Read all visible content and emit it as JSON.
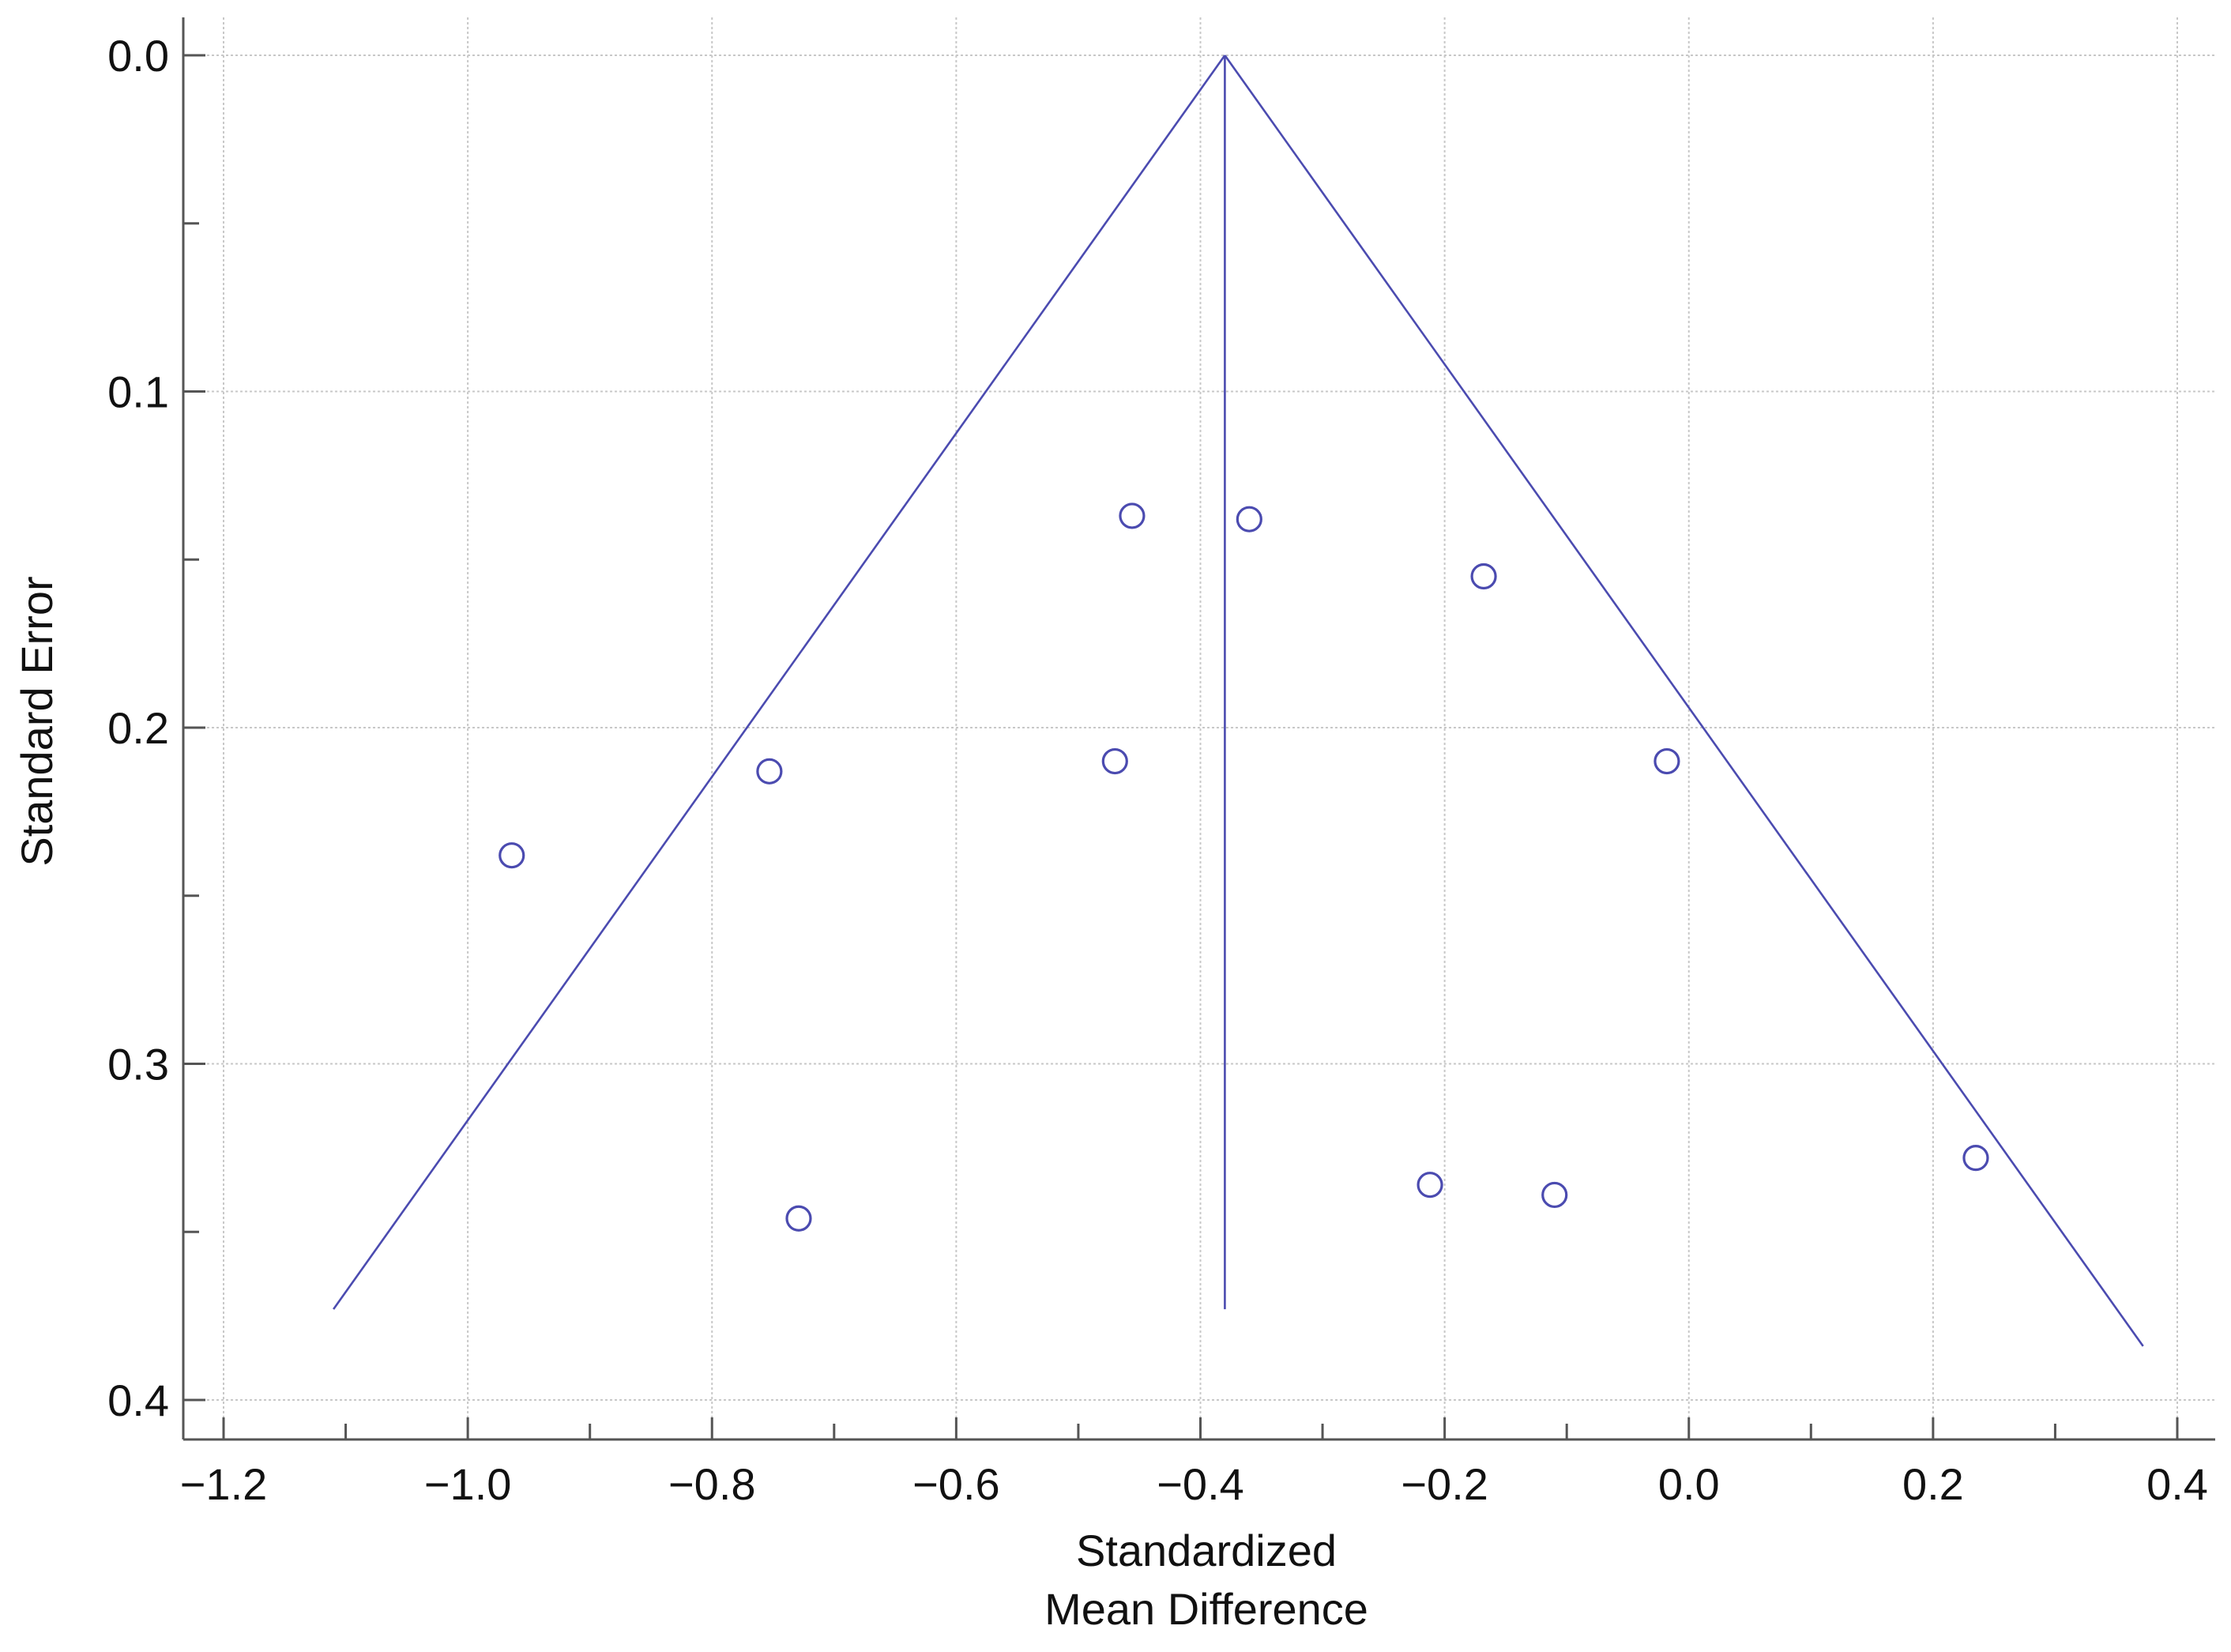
{
  "chart_data": {
    "type": "scatter",
    "subtype": "funnel plot",
    "title": "",
    "xlabel_lines": [
      "Standardized",
      "Mean Difference"
    ],
    "ylabel": "Standard Error",
    "xlim": [
      -1.25,
      0.42
    ],
    "ylim": [
      0.412,
      -0.012
    ],
    "y_axis_inverted": true,
    "x_ticks": [
      -1.2,
      -1.0,
      -0.8,
      -0.6,
      -0.4,
      -0.2,
      0.0,
      0.2,
      0.4
    ],
    "x_tick_labels": [
      "−1.2",
      "−1.0",
      "−0.8",
      "−0.6",
      "−0.4",
      "−0.2",
      "0.0",
      "0.2",
      "0.4"
    ],
    "x_minor_ticks": [
      -1.1,
      -0.9,
      -0.7,
      -0.5,
      -0.3,
      -0.1,
      0.1,
      0.3
    ],
    "y_ticks": [
      0.0,
      0.1,
      0.2,
      0.3,
      0.4
    ],
    "y_tick_labels": [
      "0.0",
      "0.1",
      "0.2",
      "0.3",
      "0.4"
    ],
    "y_minor_ticks": [
      0.05,
      0.15,
      0.25,
      0.35
    ],
    "grid": true,
    "pooled_effect": -0.38,
    "funnel": {
      "apex": {
        "x": -0.38,
        "y": 0.0
      },
      "left_end": {
        "x": -1.11,
        "y": 0.373
      },
      "right_end": {
        "x": 0.372,
        "y": 0.384
      },
      "center_line_end_y": 0.373
    },
    "points": [
      {
        "x": -0.456,
        "y": 0.137
      },
      {
        "x": -0.36,
        "y": 0.138
      },
      {
        "x": -0.168,
        "y": 0.155
      },
      {
        "x": -0.753,
        "y": 0.213
      },
      {
        "x": -0.47,
        "y": 0.21
      },
      {
        "x": -0.018,
        "y": 0.21
      },
      {
        "x": -0.964,
        "y": 0.238
      },
      {
        "x": -0.729,
        "y": 0.346
      },
      {
        "x": -0.212,
        "y": 0.336
      },
      {
        "x": -0.11,
        "y": 0.339
      },
      {
        "x": 0.235,
        "y": 0.328
      }
    ],
    "colors": {
      "series": "#4b4bb0",
      "grid": "#c8c8c8",
      "axis": "#555555",
      "text": "#111111"
    }
  }
}
